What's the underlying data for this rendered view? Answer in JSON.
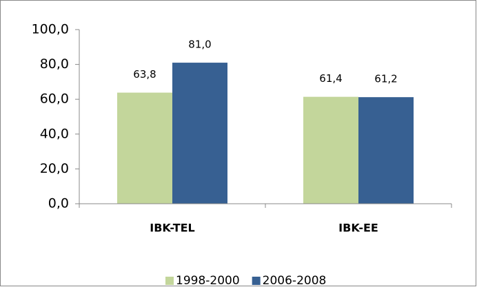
{
  "chart_data": {
    "type": "bar",
    "categories": [
      "IBK-TEL",
      "IBK-EE"
    ],
    "series": [
      {
        "name": "1998-2000",
        "color": "#c3d69b",
        "values": [
          63.8,
          61.4
        ],
        "value_labels": [
          "63,8",
          "61,4"
        ]
      },
      {
        "name": "2006-2008",
        "color": "#376092",
        "values": [
          81.0,
          61.2
        ],
        "value_labels": [
          "81,0",
          "61,2"
        ]
      }
    ],
    "ylim": [
      0,
      100
    ],
    "yticks": [
      {
        "value": 0,
        "label": "0,0"
      },
      {
        "value": 20,
        "label": "20,0"
      },
      {
        "value": 40,
        "label": "40,0"
      },
      {
        "value": 60,
        "label": "60,0"
      },
      {
        "value": 80,
        "label": "80,0"
      },
      {
        "value": 100,
        "label": "100,0"
      }
    ],
    "grid": false,
    "legend": "bottom"
  }
}
